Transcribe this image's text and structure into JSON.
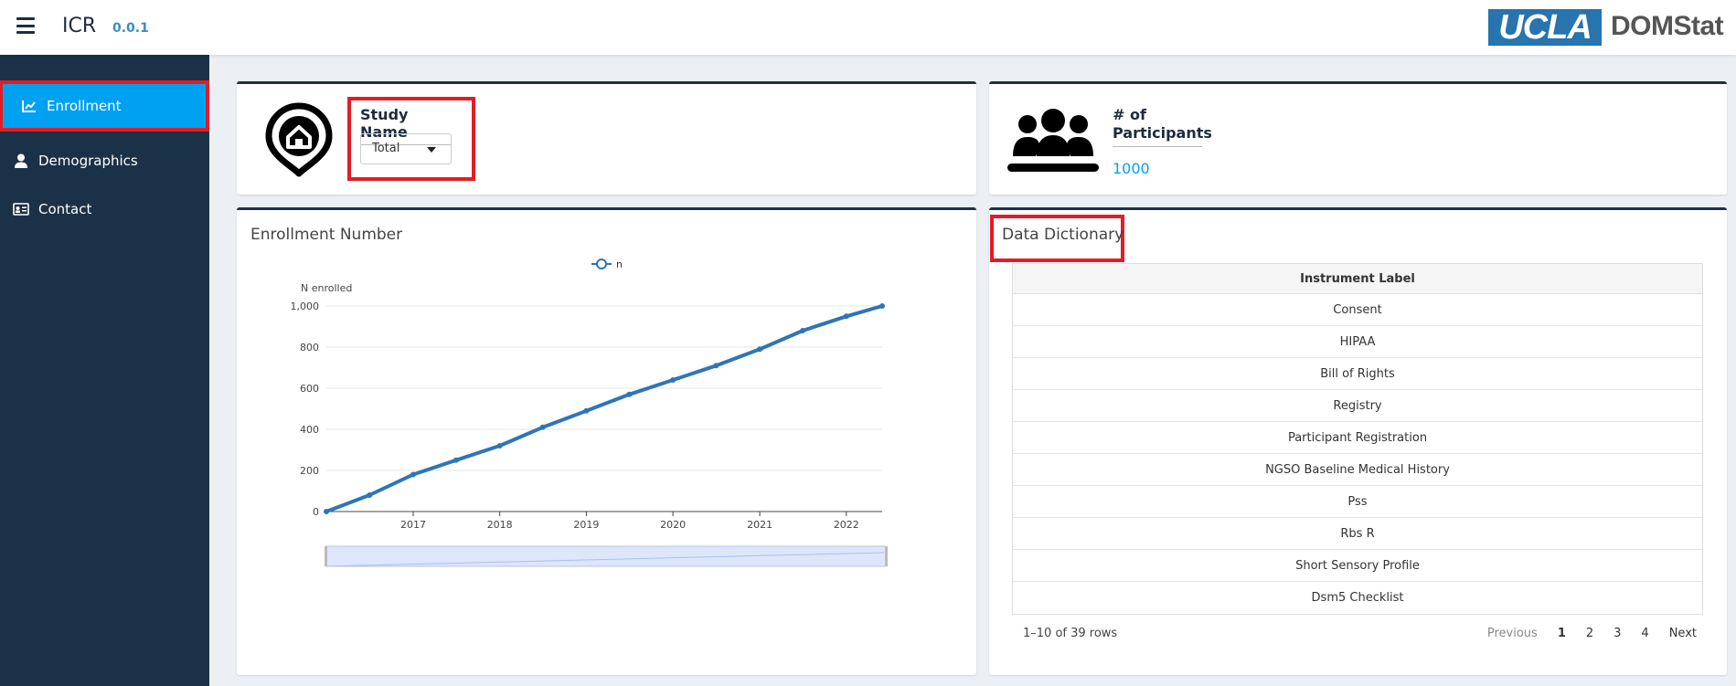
{
  "header": {
    "title": "ICR",
    "version": "0.0.1",
    "logo_ucla": "UCLA",
    "logo_domstat": "DOMStat"
  },
  "sidebar": {
    "items": [
      {
        "label": "Enrollment",
        "icon": "line-chart-icon",
        "active": true
      },
      {
        "label": "Demographics",
        "icon": "user-icon"
      },
      {
        "label": "Contact",
        "icon": "id-card-icon"
      }
    ]
  },
  "study": {
    "label": "Study Name",
    "selected": "Total",
    "icon": "home-marker-icon"
  },
  "participants": {
    "label_line1": "# of",
    "label_line2": "Participants",
    "value": "1000",
    "icon": "users-icon"
  },
  "enrollment_panel": {
    "title": "Enrollment Number"
  },
  "dictionary_panel": {
    "title": "Data Dictionary",
    "column": "Instrument Label",
    "rows": [
      "Consent",
      "HIPAA",
      "Bill of Rights",
      "Registry",
      "Participant Registration",
      "NGSO Baseline Medical History",
      "Pss",
      "Rbs R",
      "Short Sensory Profile",
      "Dsm5 Checklist"
    ],
    "info": "1–10 of 39 rows",
    "pager": {
      "previous": "Previous",
      "pages": [
        "1",
        "2",
        "3",
        "4"
      ],
      "current": "1",
      "next": "Next"
    }
  },
  "chart_data": {
    "type": "line",
    "title": "",
    "ylabel": "N enrolled",
    "xlabel": "",
    "legend": "top-center",
    "series": [
      {
        "name": "n",
        "color": "#2e75b6",
        "x": [
          "2016-01-01",
          "2016-07-01",
          "2017-01-01",
          "2017-07-01",
          "2018-01-01",
          "2018-07-01",
          "2019-01-01",
          "2019-07-01",
          "2020-01-01",
          "2020-07-01",
          "2021-01-01",
          "2021-07-01",
          "2022-01-01",
          "2022-06-01"
        ],
        "y": [
          0,
          80,
          180,
          250,
          320,
          410,
          490,
          570,
          640,
          710,
          790,
          880,
          950,
          1000
        ]
      }
    ],
    "x_ticks": [
      "2017",
      "2018",
      "2019",
      "2020",
      "2021",
      "2022"
    ],
    "y_ticks": [
      "0",
      "200",
      "400",
      "600",
      "800",
      "1,000"
    ],
    "xlim": [
      "2016-01-01",
      "2022-06-01"
    ],
    "ylim": [
      0,
      1000
    ],
    "grid": true,
    "range_slider": true
  },
  "colors": {
    "sidebar": "#1b3147",
    "accent": "#00a1f1",
    "highlight": "#e11d27",
    "link": "#3c8dbc"
  }
}
